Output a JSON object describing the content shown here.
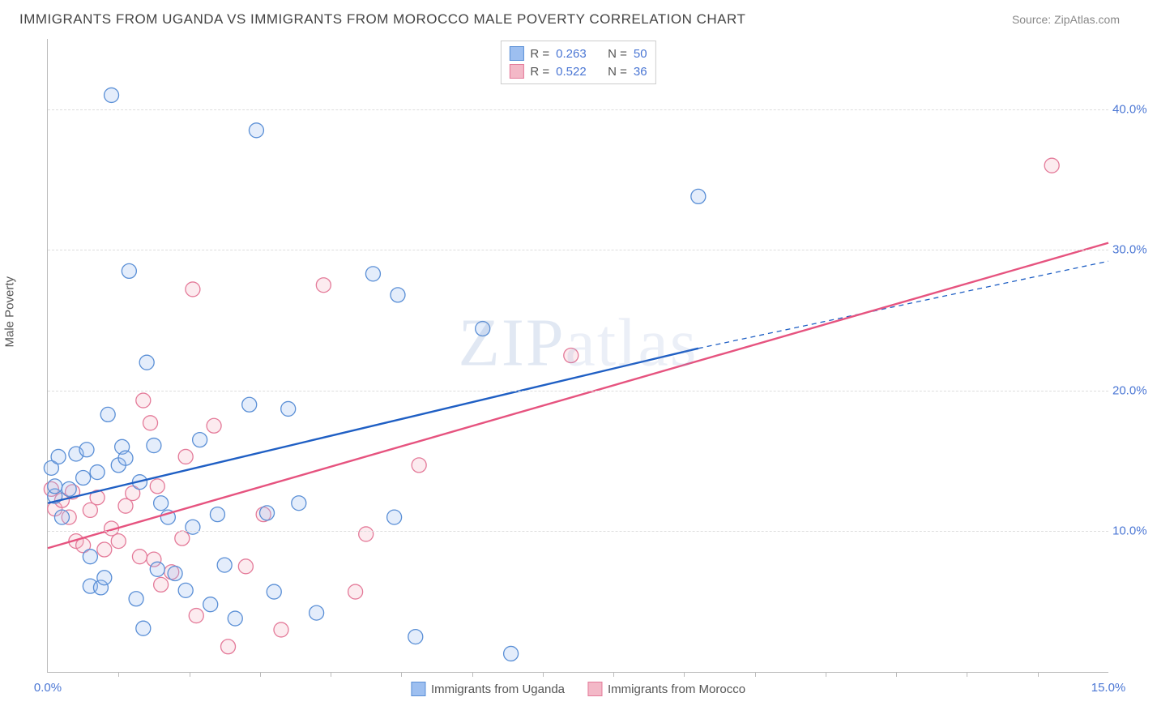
{
  "title": "IMMIGRANTS FROM UGANDA VS IMMIGRANTS FROM MOROCCO MALE POVERTY CORRELATION CHART",
  "source": "Source: ZipAtlas.com",
  "ylabel": "Male Poverty",
  "watermark": "ZIPatlas",
  "chart": {
    "type": "scatter",
    "background_color": "#ffffff",
    "grid_color": "#dddddd",
    "axis_color": "#bbbbbb",
    "xlim": [
      0,
      15
    ],
    "ylim": [
      0,
      45
    ],
    "yticks": [
      10,
      20,
      30,
      40
    ],
    "ytick_labels": [
      "10.0%",
      "20.0%",
      "30.0%",
      "40.0%"
    ],
    "xticks_major": [
      0,
      15
    ],
    "xtick_labels": [
      "0.0%",
      "15.0%"
    ],
    "xticks_minor": [
      1,
      2,
      3,
      4,
      5,
      6,
      7,
      8,
      9,
      10,
      11,
      12,
      13,
      14
    ],
    "marker_radius": 9,
    "marker_stroke_width": 1.3,
    "marker_fill_opacity": 0.28,
    "line_width_solid": 2.4,
    "line_width_dash": 1.3
  },
  "series": {
    "uganda": {
      "label": "Immigrants from Uganda",
      "color_fill": "#9dbff0",
      "color_stroke": "#5a8fd6",
      "line_color": "#1f5fc4",
      "R": "0.263",
      "N": "50",
      "trend_solid": {
        "x1": 0,
        "y1": 12.0,
        "x2": 9.2,
        "y2": 23.0
      },
      "trend_dash": {
        "x1": 9.2,
        "y1": 23.0,
        "x2": 15,
        "y2": 29.2
      },
      "points": [
        [
          0.05,
          14.5
        ],
        [
          0.1,
          12.5
        ],
        [
          0.1,
          13.2
        ],
        [
          0.15,
          15.3
        ],
        [
          0.2,
          11.0
        ],
        [
          0.3,
          13.0
        ],
        [
          0.4,
          15.5
        ],
        [
          0.5,
          13.8
        ],
        [
          0.55,
          15.8
        ],
        [
          0.6,
          8.2
        ],
        [
          0.6,
          6.1
        ],
        [
          0.7,
          14.2
        ],
        [
          0.75,
          6.0
        ],
        [
          0.8,
          6.7
        ],
        [
          0.85,
          18.3
        ],
        [
          0.9,
          41.0
        ],
        [
          1.0,
          14.7
        ],
        [
          1.05,
          16.0
        ],
        [
          1.1,
          15.2
        ],
        [
          1.15,
          28.5
        ],
        [
          1.25,
          5.2
        ],
        [
          1.3,
          13.5
        ],
        [
          1.35,
          3.1
        ],
        [
          1.4,
          22.0
        ],
        [
          1.5,
          16.1
        ],
        [
          1.55,
          7.3
        ],
        [
          1.6,
          12.0
        ],
        [
          1.7,
          11.0
        ],
        [
          1.8,
          7.0
        ],
        [
          1.95,
          5.8
        ],
        [
          2.05,
          10.3
        ],
        [
          2.15,
          16.5
        ],
        [
          2.3,
          4.8
        ],
        [
          2.4,
          11.2
        ],
        [
          2.5,
          7.6
        ],
        [
          2.65,
          3.8
        ],
        [
          2.85,
          19.0
        ],
        [
          2.95,
          38.5
        ],
        [
          3.1,
          11.3
        ],
        [
          3.2,
          5.7
        ],
        [
          3.4,
          18.7
        ],
        [
          3.55,
          12.0
        ],
        [
          3.8,
          4.2
        ],
        [
          4.6,
          28.3
        ],
        [
          4.9,
          11.0
        ],
        [
          4.95,
          26.8
        ],
        [
          5.2,
          2.5
        ],
        [
          6.15,
          24.4
        ],
        [
          6.55,
          1.3
        ],
        [
          9.2,
          33.8
        ]
      ]
    },
    "morocco": {
      "label": "Immigrants from Morocco",
      "color_fill": "#f3b8c7",
      "color_stroke": "#e47a99",
      "line_color": "#e6537f",
      "R": "0.522",
      "N": "36",
      "trend_solid": {
        "x1": 0,
        "y1": 8.8,
        "x2": 15,
        "y2": 30.5
      },
      "trend_dash": null,
      "points": [
        [
          0.05,
          13.0
        ],
        [
          0.1,
          11.6
        ],
        [
          0.2,
          12.2
        ],
        [
          0.3,
          11.0
        ],
        [
          0.35,
          12.8
        ],
        [
          0.4,
          9.3
        ],
        [
          0.5,
          9.0
        ],
        [
          0.6,
          11.5
        ],
        [
          0.7,
          12.4
        ],
        [
          0.8,
          8.7
        ],
        [
          0.9,
          10.2
        ],
        [
          1.0,
          9.3
        ],
        [
          1.1,
          11.8
        ],
        [
          1.2,
          12.7
        ],
        [
          1.3,
          8.2
        ],
        [
          1.35,
          19.3
        ],
        [
          1.45,
          17.7
        ],
        [
          1.5,
          8.0
        ],
        [
          1.55,
          13.2
        ],
        [
          1.6,
          6.2
        ],
        [
          1.75,
          7.1
        ],
        [
          1.9,
          9.5
        ],
        [
          1.95,
          15.3
        ],
        [
          2.05,
          27.2
        ],
        [
          2.1,
          4.0
        ],
        [
          2.35,
          17.5
        ],
        [
          2.55,
          1.8
        ],
        [
          2.8,
          7.5
        ],
        [
          3.05,
          11.2
        ],
        [
          3.3,
          3.0
        ],
        [
          3.9,
          27.5
        ],
        [
          4.35,
          5.7
        ],
        [
          4.5,
          9.8
        ],
        [
          5.25,
          14.7
        ],
        [
          7.4,
          22.5
        ],
        [
          14.2,
          36.0
        ]
      ]
    }
  },
  "top_legend": {
    "r_label": "R =",
    "n_label": "N ="
  },
  "text_colors": {
    "title": "#444444",
    "source": "#888888",
    "axis_label": "#555555",
    "tick_value": "#4a76d4"
  }
}
